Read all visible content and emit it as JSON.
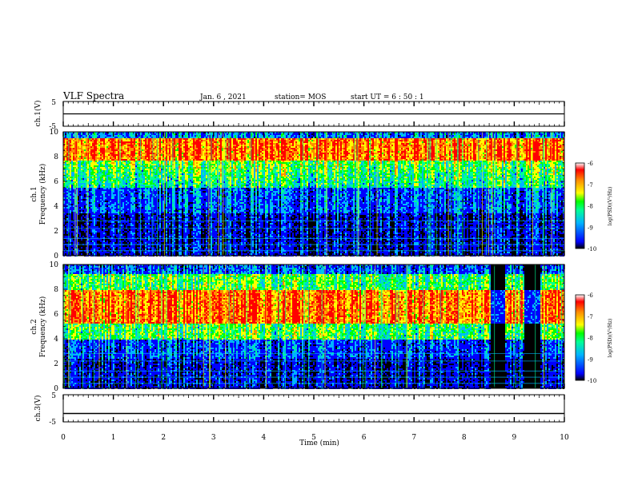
{
  "header": {
    "title": "VLF Spectra",
    "date": "Jan. 6 , 2021",
    "station": "station= MOS",
    "start": "start UT = 6 : 50 : 1"
  },
  "chart_data": [
    {
      "type": "line",
      "panel": "ch1-waveform",
      "ylabel": "ch.1(V)",
      "ylim": [
        -5,
        5
      ],
      "yticks": [
        5,
        -5
      ],
      "series": [
        {
          "x": [
            0,
            10
          ],
          "y": [
            0,
            0
          ]
        }
      ]
    },
    {
      "type": "heatmap",
      "panel": "ch1-spectrogram",
      "ylabel_top": "ch.1",
      "ylabel": "Frequency (kHz)",
      "ylim": [
        0,
        10
      ],
      "yticks": [
        0,
        2,
        4,
        6,
        8,
        10
      ],
      "xlim": [
        0,
        10
      ],
      "colorbar": {
        "label": "log(PSD)(V²/Hz)",
        "range": [
          -10,
          -6
        ],
        "ticks": [
          -6,
          -7,
          -8,
          -9,
          -10
        ]
      }
    },
    {
      "type": "heatmap",
      "panel": "ch2-spectrogram",
      "ylabel_top": "ch.2",
      "ylabel": "Frequency (kHz)",
      "ylim": [
        0,
        10
      ],
      "yticks": [
        0,
        2,
        4,
        6,
        8,
        10
      ],
      "xlim": [
        0,
        10
      ],
      "colorbar": {
        "label": "log(PSD)(V²/Hz)",
        "range": [
          -10,
          -6
        ],
        "ticks": [
          -6,
          -7,
          -8,
          -9,
          -10
        ]
      }
    },
    {
      "type": "line",
      "panel": "ch3-waveform",
      "ylabel": "ch.3(V)",
      "ylim": [
        -5,
        5
      ],
      "yticks": [
        5,
        -5
      ],
      "xlabel": "Time (min)",
      "xlim": [
        0,
        10
      ],
      "xticks": [
        0,
        1,
        2,
        3,
        4,
        5,
        6,
        7,
        8,
        9,
        10
      ],
      "series": [
        {
          "x": [
            0,
            10
          ],
          "y": [
            -1.9,
            -1.9
          ]
        }
      ]
    }
  ],
  "colors": {
    "colormap": [
      "#000000",
      "#0000ff",
      "#00b4ff",
      "#00ff96",
      "#00ff00",
      "#b4ff00",
      "#ffff00",
      "#ff8c00",
      "#ff0000",
      "#ffffff"
    ]
  }
}
